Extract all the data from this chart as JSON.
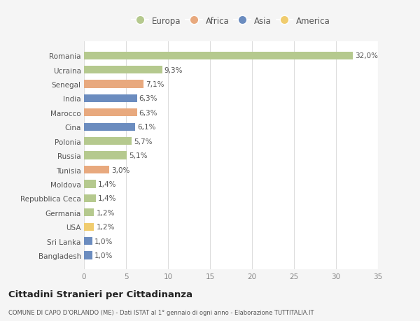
{
  "categories": [
    "Romania",
    "Ucraina",
    "Senegal",
    "India",
    "Marocco",
    "Cina",
    "Polonia",
    "Russia",
    "Tunisia",
    "Moldova",
    "Repubblica Ceca",
    "Germania",
    "USA",
    "Sri Lanka",
    "Bangladesh"
  ],
  "values": [
    32.0,
    9.3,
    7.1,
    6.3,
    6.3,
    6.1,
    5.7,
    5.1,
    3.0,
    1.4,
    1.4,
    1.2,
    1.2,
    1.0,
    1.0
  ],
  "labels": [
    "32,0%",
    "9,3%",
    "7,1%",
    "6,3%",
    "6,3%",
    "6,1%",
    "5,7%",
    "5,1%",
    "3,0%",
    "1,4%",
    "1,4%",
    "1,2%",
    "1,2%",
    "1,0%",
    "1,0%"
  ],
  "continents": [
    "Europa",
    "Europa",
    "Africa",
    "Asia",
    "Africa",
    "Asia",
    "Europa",
    "Europa",
    "Africa",
    "Europa",
    "Europa",
    "Europa",
    "America",
    "Asia",
    "Asia"
  ],
  "continent_colors": {
    "Europa": "#b5c98e",
    "Africa": "#e8a97e",
    "Asia": "#6b8cbf",
    "America": "#f0cc6e"
  },
  "legend_order": [
    "Europa",
    "Africa",
    "Asia",
    "America"
  ],
  "xlim": [
    0,
    35
  ],
  "xticks": [
    0,
    5,
    10,
    15,
    20,
    25,
    30,
    35
  ],
  "title": "Cittadini Stranieri per Cittadinanza",
  "subtitle": "COMUNE DI CAPO D'ORLANDO (ME) - Dati ISTAT al 1° gennaio di ogni anno - Elaborazione TUTTITALIA.IT",
  "background_color": "#f5f5f5",
  "bar_background": "#ffffff",
  "grid_color": "#dddddd"
}
